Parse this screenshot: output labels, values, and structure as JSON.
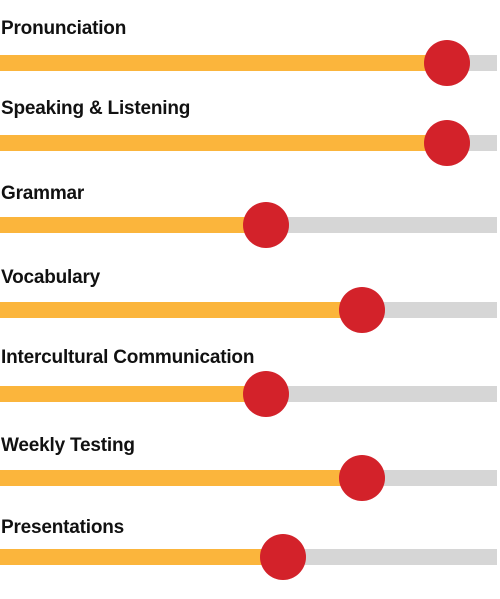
{
  "skills": [
    {
      "label": "Pronunciation",
      "level": 0.9,
      "colors": {
        "fill": "#fbb53c",
        "track": "#d6d6d6",
        "thumb": "#d3222a"
      }
    },
    {
      "label": "Speaking & Listening",
      "level": 0.9
    },
    {
      "label": "Grammar",
      "level": 0.535
    },
    {
      "label": "Vocabulary",
      "level": 0.728
    },
    {
      "label": "Intercultural Communication",
      "level": 0.535
    },
    {
      "label": "Weekly Testing",
      "level": 0.728
    },
    {
      "label": "Presentations",
      "level": 0.57
    }
  ]
}
